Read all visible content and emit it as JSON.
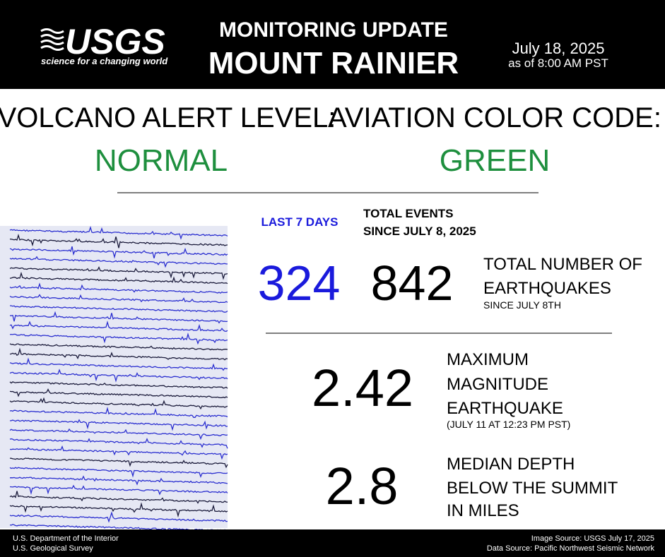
{
  "header": {
    "logo": "USGS",
    "tagline": "science for a changing world",
    "title": "MONITORING UPDATE",
    "subtitle": "MOUNT RAINIER",
    "date": "July 18, 2025",
    "time": "as of 8:00 AM PST"
  },
  "status": {
    "alert_label": "VOLCANO ALERT LEVEL:",
    "alert_value": "NORMAL",
    "aviation_label": "AVIATION COLOR CODE:",
    "aviation_value": "GREEN"
  },
  "events": {
    "recent_label": "LAST 7 DAYS",
    "total_label": [
      "TOTAL EVENTS",
      "SINCE JULY 8, 2025"
    ],
    "recent_count": 324,
    "total_count": 842,
    "description": [
      "TOTAL NUMBER OF",
      "EARTHQUAKES"
    ],
    "note": "SINCE JULY 8TH"
  },
  "magnitude": {
    "value": 2.42,
    "description": [
      "MAXIMUM",
      "MAGNITUDE",
      "EARTHQUAKE"
    ],
    "note": "(JULY 11 AT 12:23 PM PST)"
  },
  "depth": {
    "value": 2.8,
    "description": [
      "MEDIAN DEPTH",
      "BELOW THE SUMMIT",
      "IN MILES"
    ]
  },
  "footer": {
    "left": [
      "U.S. Department of the Interior",
      "U.S. Geological Survey"
    ],
    "right": [
      "Image Source: USGS July 17, 2025",
      "Data Source: Pacific Northwest Seismic Network"
    ]
  }
}
